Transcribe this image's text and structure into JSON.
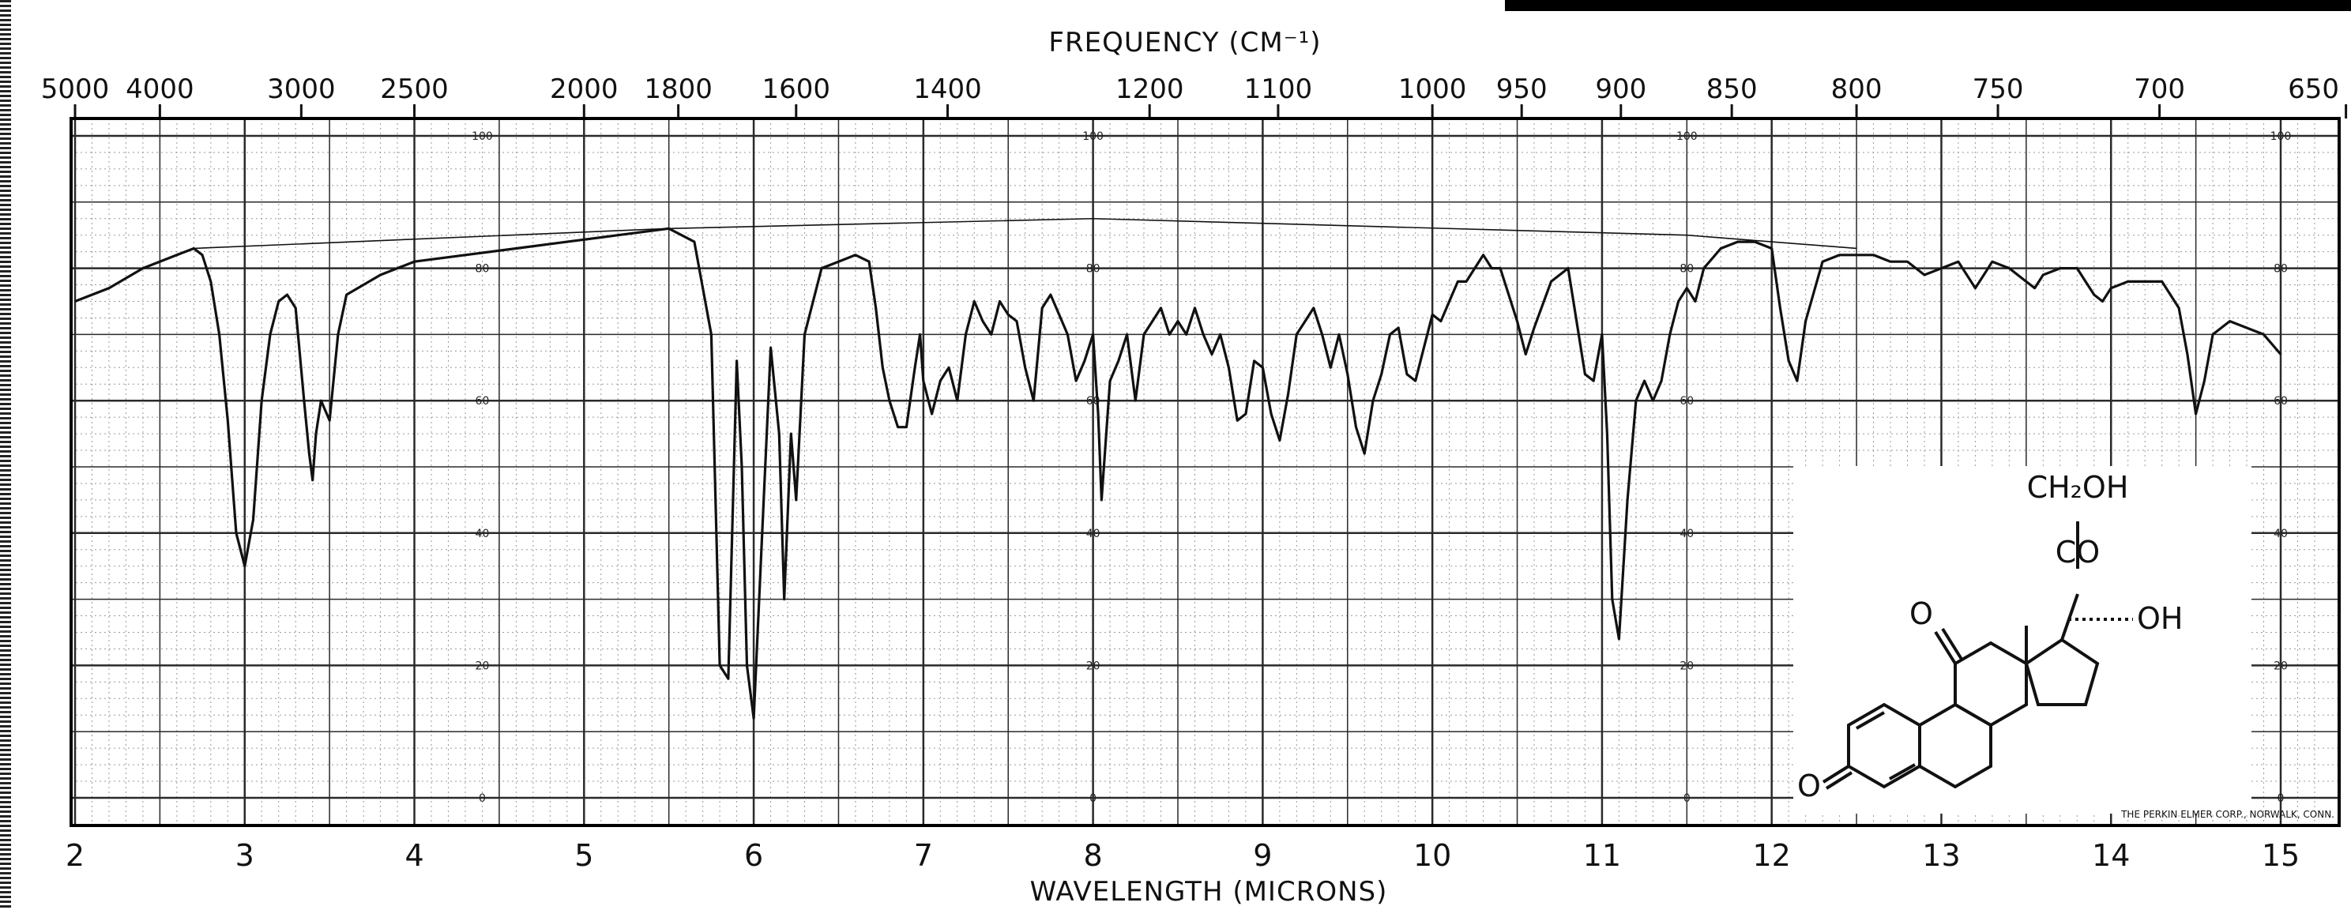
{
  "chart_data": {
    "type": "line",
    "title": "",
    "frequency_axis_label": "FREQUENCY (CM⁻¹)",
    "xlabel": "WAVELENGTH (MICRONS)",
    "ylabel": "",
    "xlim": [
      2,
      15.2
    ],
    "ylim": [
      0,
      100
    ],
    "wavelength_ticks": [
      "2",
      "3",
      "4",
      "5",
      "6",
      "7",
      "8",
      "9",
      "10",
      "11",
      "12",
      "13",
      "14",
      "15"
    ],
    "frequency_ticks": [
      {
        "label": "5000",
        "wn": 5000
      },
      {
        "label": "4000",
        "wn": 4000
      },
      {
        "label": "3000",
        "wn": 3000
      },
      {
        "label": "2500",
        "wn": 2500
      },
      {
        "label": "2000",
        "wn": 2000
      },
      {
        "label": "1800",
        "wn": 1800
      },
      {
        "label": "1600",
        "wn": 1600
      },
      {
        "label": "1400",
        "wn": 1400
      },
      {
        "label": "1200",
        "wn": 1200
      },
      {
        "label": "1100",
        "wn": 1100
      },
      {
        "label": "1000",
        "wn": 1000
      },
      {
        "label": "950",
        "wn": 950
      },
      {
        "label": "900",
        "wn": 900
      },
      {
        "label": "850",
        "wn": 850
      },
      {
        "label": "800",
        "wn": 800
      },
      {
        "label": "750",
        "wn": 750
      },
      {
        "label": "700",
        "wn": 700
      },
      {
        "label": "650",
        "wn": 650
      }
    ],
    "transmittance_ticks": [
      "0",
      "20",
      "40",
      "60",
      "80",
      "100"
    ],
    "series": [
      {
        "points": [
          [
            2.0,
            75
          ],
          [
            2.2,
            77
          ],
          [
            2.4,
            80
          ],
          [
            2.6,
            82
          ],
          [
            2.7,
            83
          ],
          [
            2.75,
            82
          ],
          [
            2.8,
            78
          ],
          [
            2.85,
            70
          ],
          [
            2.9,
            57
          ],
          [
            2.95,
            40
          ],
          [
            3.0,
            35
          ],
          [
            3.05,
            42
          ],
          [
            3.1,
            60
          ],
          [
            3.15,
            70
          ],
          [
            3.2,
            75
          ],
          [
            3.25,
            76
          ],
          [
            3.3,
            74
          ],
          [
            3.35,
            60
          ],
          [
            3.38,
            52
          ],
          [
            3.4,
            48
          ],
          [
            3.42,
            55
          ],
          [
            3.45,
            60
          ],
          [
            3.5,
            57
          ],
          [
            3.55,
            70
          ],
          [
            3.6,
            76
          ],
          [
            3.8,
            79
          ],
          [
            4.0,
            81
          ],
          [
            4.3,
            82
          ],
          [
            4.6,
            83
          ],
          [
            4.9,
            84
          ],
          [
            5.2,
            85
          ],
          [
            5.5,
            86
          ],
          [
            5.65,
            84
          ],
          [
            5.75,
            70
          ],
          [
            5.8,
            20
          ],
          [
            5.85,
            18
          ],
          [
            5.9,
            66
          ],
          [
            5.93,
            50
          ],
          [
            5.96,
            20
          ],
          [
            6.0,
            12
          ],
          [
            6.05,
            40
          ],
          [
            6.1,
            68
          ],
          [
            6.15,
            55
          ],
          [
            6.18,
            30
          ],
          [
            6.22,
            55
          ],
          [
            6.25,
            45
          ],
          [
            6.3,
            70
          ],
          [
            6.4,
            80
          ],
          [
            6.5,
            81
          ],
          [
            6.6,
            82
          ],
          [
            6.68,
            81
          ],
          [
            6.72,
            74
          ],
          [
            6.76,
            65
          ],
          [
            6.8,
            60
          ],
          [
            6.85,
            56
          ],
          [
            6.9,
            56
          ],
          [
            6.95,
            65
          ],
          [
            6.98,
            70
          ],
          [
            7.0,
            63
          ],
          [
            7.05,
            58
          ],
          [
            7.1,
            63
          ],
          [
            7.15,
            65
          ],
          [
            7.2,
            60
          ],
          [
            7.25,
            70
          ],
          [
            7.3,
            75
          ],
          [
            7.35,
            72
          ],
          [
            7.4,
            70
          ],
          [
            7.45,
            75
          ],
          [
            7.5,
            73
          ],
          [
            7.55,
            72
          ],
          [
            7.6,
            65
          ],
          [
            7.65,
            60
          ],
          [
            7.7,
            74
          ],
          [
            7.75,
            76
          ],
          [
            7.8,
            73
          ],
          [
            7.85,
            70
          ],
          [
            7.9,
            63
          ],
          [
            7.95,
            66
          ],
          [
            8.0,
            70
          ],
          [
            8.03,
            58
          ],
          [
            8.05,
            45
          ],
          [
            8.1,
            63
          ],
          [
            8.15,
            66
          ],
          [
            8.2,
            70
          ],
          [
            8.25,
            60
          ],
          [
            8.3,
            70
          ],
          [
            8.35,
            72
          ],
          [
            8.4,
            74
          ],
          [
            8.45,
            70
          ],
          [
            8.5,
            72
          ],
          [
            8.55,
            70
          ],
          [
            8.6,
            74
          ],
          [
            8.65,
            70
          ],
          [
            8.7,
            67
          ],
          [
            8.75,
            70
          ],
          [
            8.8,
            65
          ],
          [
            8.85,
            57
          ],
          [
            8.9,
            58
          ],
          [
            8.95,
            66
          ],
          [
            9.0,
            65
          ],
          [
            9.05,
            58
          ],
          [
            9.1,
            54
          ],
          [
            9.15,
            61
          ],
          [
            9.2,
            70
          ],
          [
            9.25,
            72
          ],
          [
            9.3,
            74
          ],
          [
            9.35,
            70
          ],
          [
            9.4,
            65
          ],
          [
            9.45,
            70
          ],
          [
            9.5,
            64
          ],
          [
            9.55,
            56
          ],
          [
            9.6,
            52
          ],
          [
            9.65,
            60
          ],
          [
            9.7,
            64
          ],
          [
            9.75,
            70
          ],
          [
            9.8,
            71
          ],
          [
            9.85,
            64
          ],
          [
            9.9,
            63
          ],
          [
            9.95,
            68
          ],
          [
            10.0,
            73
          ],
          [
            10.05,
            72
          ],
          [
            10.1,
            75
          ],
          [
            10.15,
            78
          ],
          [
            10.2,
            78
          ],
          [
            10.25,
            80
          ],
          [
            10.3,
            82
          ],
          [
            10.35,
            80
          ],
          [
            10.4,
            80
          ],
          [
            10.45,
            76
          ],
          [
            10.5,
            72
          ],
          [
            10.55,
            67
          ],
          [
            10.6,
            71
          ],
          [
            10.7,
            78
          ],
          [
            10.8,
            80
          ],
          [
            10.85,
            72
          ],
          [
            10.9,
            64
          ],
          [
            10.95,
            63
          ],
          [
            11.0,
            70
          ],
          [
            11.03,
            55
          ],
          [
            11.06,
            30
          ],
          [
            11.1,
            24
          ],
          [
            11.15,
            45
          ],
          [
            11.2,
            60
          ],
          [
            11.25,
            63
          ],
          [
            11.3,
            60
          ],
          [
            11.35,
            63
          ],
          [
            11.4,
            70
          ],
          [
            11.45,
            75
          ],
          [
            11.5,
            77
          ],
          [
            11.55,
            75
          ],
          [
            11.6,
            80
          ],
          [
            11.7,
            83
          ],
          [
            11.8,
            84
          ],
          [
            11.9,
            84
          ],
          [
            12.0,
            83
          ],
          [
            12.05,
            74
          ],
          [
            12.1,
            66
          ],
          [
            12.15,
            63
          ],
          [
            12.2,
            72
          ],
          [
            12.3,
            81
          ],
          [
            12.4,
            82
          ],
          [
            12.5,
            82
          ],
          [
            12.6,
            82
          ],
          [
            12.7,
            81
          ],
          [
            12.8,
            81
          ],
          [
            12.9,
            79
          ],
          [
            13.0,
            80
          ],
          [
            13.1,
            81
          ],
          [
            13.15,
            79
          ],
          [
            13.2,
            77
          ],
          [
            13.25,
            79
          ],
          [
            13.3,
            81
          ],
          [
            13.4,
            80
          ],
          [
            13.5,
            78
          ],
          [
            13.55,
            77
          ],
          [
            13.6,
            79
          ],
          [
            13.7,
            80
          ],
          [
            13.8,
            80
          ],
          [
            13.85,
            78
          ],
          [
            13.9,
            76
          ],
          [
            13.95,
            75
          ],
          [
            14.0,
            77
          ],
          [
            14.1,
            78
          ],
          [
            14.2,
            78
          ],
          [
            14.3,
            78
          ],
          [
            14.4,
            74
          ],
          [
            14.45,
            67
          ],
          [
            14.5,
            58
          ],
          [
            14.55,
            63
          ],
          [
            14.6,
            70
          ],
          [
            14.7,
            72
          ],
          [
            14.8,
            71
          ],
          [
            14.9,
            70
          ],
          [
            15.0,
            67
          ]
        ]
      }
    ],
    "baseline": [
      [
        2.7,
        83
      ],
      [
        5.5,
        86
      ],
      [
        8.0,
        87.5
      ],
      [
        11.5,
        85
      ],
      [
        12.5,
        83
      ]
    ],
    "credit": "THE PERKIN ELMER CORP., NORWALK, CONN.",
    "structure_labels": [
      "CH₂OH",
      "CO",
      "OH",
      "O",
      "O"
    ],
    "colors": {
      "ink": "#111111",
      "grid_dark": "#2a2a2a",
      "grid_light": "#9a9a9a",
      "paper": "#ffffff",
      "frame": "#000000"
    }
  }
}
